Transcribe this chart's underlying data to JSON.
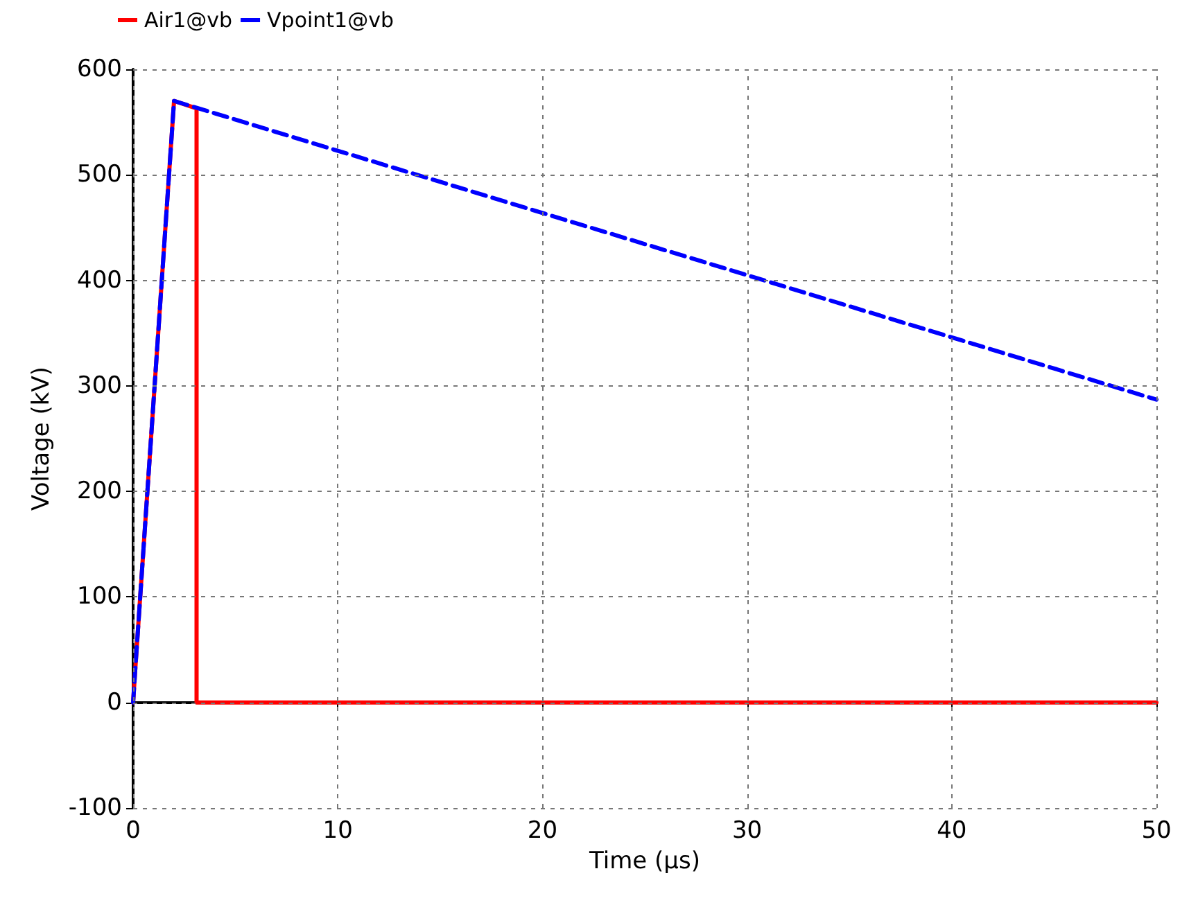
{
  "chart_data": {
    "type": "line",
    "xlabel": "Time (µs)",
    "ylabel": "Voltage (kV)",
    "xlim": [
      0,
      50
    ],
    "xticks": [
      0,
      10,
      20,
      30,
      40,
      50
    ],
    "ylim": [
      -100,
      600
    ],
    "yticks": [
      -100,
      0,
      100,
      200,
      300,
      400,
      500,
      600
    ],
    "grid": true,
    "legend": "top left",
    "marker": "none",
    "series": [
      {
        "name": "Air1@vb",
        "color": "#ff0000",
        "line_style": "solid",
        "x": [
          0,
          0.1,
          2,
          3.1,
          3.1,
          50
        ],
        "values": [
          0,
          30,
          570,
          563,
          0,
          0
        ]
      },
      {
        "name": "Vpoint1@vb",
        "color": "#0000ff",
        "line_style": "dashed",
        "x": [
          0,
          0.1,
          2,
          50
        ],
        "values": [
          0,
          30,
          570,
          287
        ]
      }
    ]
  }
}
